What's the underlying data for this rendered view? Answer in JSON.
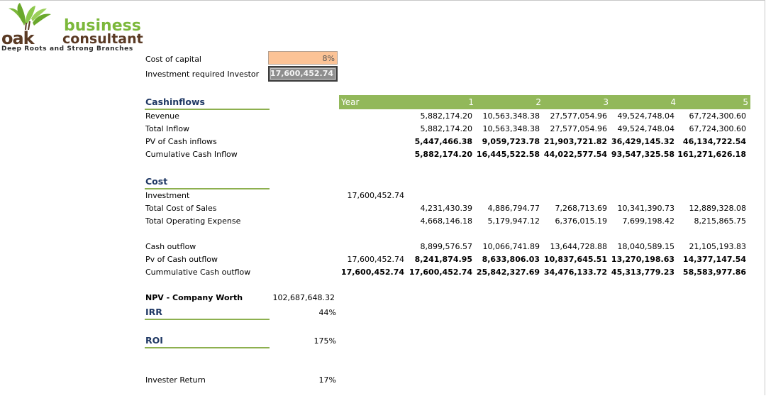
{
  "logo": {
    "word_business": "business",
    "word_consultant": "consultant",
    "word_oak": "oak",
    "tagline": "Deep Roots and Strong Branches",
    "brand_green": "#7cb83b",
    "brand_brown": "#5a3a24"
  },
  "inputs": {
    "cost_of_capital_label": "Cost of capital",
    "cost_of_capital_value": "8%",
    "investment_label": "Investment required Investor",
    "investment_value": "17,600,452.74"
  },
  "header": {
    "year_label": "Year",
    "years": [
      "1",
      "2",
      "3",
      "4",
      "5"
    ],
    "bar_color": "#92b85a"
  },
  "cashinflows": {
    "title": "Cashinflows",
    "rows": [
      {
        "label": "Revenue",
        "values": [
          "5,882,174.20",
          "10,563,348.38",
          "27,577,054.96",
          "49,524,748.04",
          "67,724,300.60"
        ]
      },
      {
        "label": "Total Inflow",
        "values": [
          "5,882,174.20",
          "10,563,348.38",
          "27,577,054.96",
          "49,524,748.04",
          "67,724,300.60"
        ]
      },
      {
        "label": "PV of Cash inflows",
        "values": [
          "5,447,466.38",
          "9,059,723.78",
          "21,903,721.82",
          "36,429,145.32",
          "46,134,722.54"
        ]
      },
      {
        "label": "Cumulative Cash Inflow",
        "values": [
          "5,882,174.20",
          "16,445,522.58",
          "44,022,577.54",
          "93,547,325.58",
          "161,271,626.18"
        ]
      }
    ]
  },
  "cost": {
    "title": "Cost",
    "investment": {
      "label": "Investment",
      "year0": "17,600,452.74"
    },
    "rows": [
      {
        "label": "Total Cost of Sales",
        "values": [
          "4,231,430.39",
          "4,886,794.77",
          "7,268,713.69",
          "10,341,390.73",
          "12,889,328.08"
        ]
      },
      {
        "label": "Total Operating Expense",
        "values": [
          "4,668,146.18",
          "5,179,947.12",
          "6,376,015.19",
          "7,699,198.42",
          "8,215,865.75"
        ]
      }
    ],
    "cash_outflow": {
      "label": "Cash outflow",
      "values": [
        "8,899,576.57",
        "10,066,741.89",
        "13,644,728.88",
        "18,040,589.15",
        "21,105,193.83"
      ]
    },
    "pv_outflow": {
      "label": "Pv of Cash outflow",
      "year0": "17,600,452.74",
      "values": [
        "8,241,874.95",
        "8,633,806.03",
        "10,837,645.51",
        "13,270,198.63",
        "14,377,147.54"
      ]
    },
    "cum_outflow": {
      "label": "Cummulative Cash outflow",
      "year0": "17,600,452.74",
      "values": [
        "17,600,452.74",
        "25,842,327.69",
        "34,476,133.72",
        "45,313,779.23",
        "58,583,977.86"
      ]
    }
  },
  "summary": {
    "npv_label": "NPV - Company Worth",
    "npv_value": "102,687,648.32",
    "irr_label": "IRR",
    "irr_value": "44%",
    "roi_label": "ROI",
    "roi_value": "175%",
    "return_label": "Invester Return",
    "return_value": "17%"
  }
}
